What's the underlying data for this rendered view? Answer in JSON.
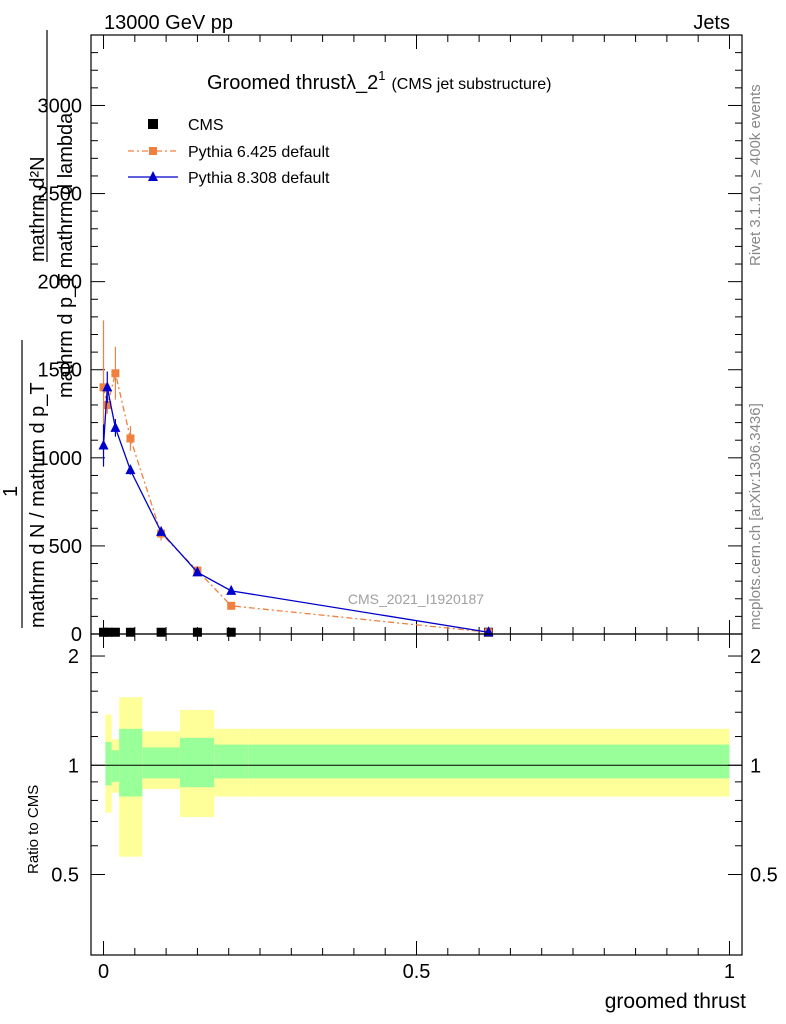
{
  "header": {
    "left": "13000 GeV pp",
    "right": "Jets"
  },
  "side_labels": {
    "rivet": "Rivet 3.1.10, ≥ 400k events",
    "mcplots": "mcplots.cern.ch [arXiv:1306.3436]"
  },
  "chart_data": {
    "type": "line",
    "title": "Groomed thrustλ_2",
    "title_sup": "1",
    "subtitle": "(CMS jet substructure)",
    "watermark": "CMS_2021_I1920187",
    "xlabel": "groomed thrust",
    "ylabel_top": {
      "numerator": "mathrm d²N",
      "denominator": "mathrm d p_T mathrm d lambda",
      "prefactor": "1",
      "prefactor_den": "mathrm d N / mathrm d p_T"
    },
    "xlim": [
      -0.02,
      1.02
    ],
    "ylim": [
      0,
      3400
    ],
    "x_ticks": [
      0,
      0.5,
      1
    ],
    "x_tick_labels": [
      "0",
      "0.5",
      "1"
    ],
    "y_ticks": [
      0,
      500,
      1000,
      1500,
      2000,
      2500,
      3000
    ],
    "y_tick_labels": [
      "0",
      "500",
      "1000",
      "1500",
      "2000",
      "2500",
      "3000"
    ],
    "legend_position": "top-left",
    "series": [
      {
        "name": "CMS",
        "color": "#000000",
        "marker": "square",
        "x": [
          0.0,
          0.008,
          0.019,
          0.043,
          0.092,
          0.15,
          0.204,
          0.615
        ],
        "y": [
          10,
          10,
          10,
          10,
          10,
          10,
          10,
          10
        ]
      },
      {
        "name": "Pythia 6.425 default",
        "color": "#f08040",
        "marker": "square",
        "x": [
          0.0,
          0.006,
          0.019,
          0.043,
          0.092,
          0.15,
          0.204,
          0.615
        ],
        "y": [
          1400,
          1300,
          1480,
          1110,
          570,
          360,
          160,
          10
        ],
        "err": [
          380,
          50,
          150,
          70,
          40,
          25,
          20,
          5
        ]
      },
      {
        "name": "Pythia 8.308 default",
        "color": "#0000cc",
        "marker": "triangle",
        "x": [
          0.0,
          0.006,
          0.019,
          0.043,
          0.092,
          0.15,
          0.204,
          0.615
        ],
        "y": [
          1070,
          1400,
          1170,
          930,
          580,
          350,
          245,
          10
        ],
        "err": [
          120,
          90,
          50,
          25,
          20,
          15,
          10,
          5
        ]
      }
    ],
    "ratio": {
      "ylabel": "Ratio to CMS",
      "ylim": [
        0.3,
        2.3
      ],
      "y_ticks": [
        0.5,
        1,
        2
      ],
      "y_tick_labels": [
        "0.5",
        "1",
        "2"
      ],
      "band_edges": [
        0.0,
        0.003,
        0.013,
        0.025,
        0.062,
        0.122,
        0.177,
        0.232,
        1.0
      ],
      "inner_band": [
        [
          1.0,
          1.0
        ],
        [
          0.88,
          1.16
        ],
        [
          0.9,
          1.1
        ],
        [
          0.82,
          1.26
        ],
        [
          0.92,
          1.12
        ],
        [
          0.87,
          1.19
        ],
        [
          0.92,
          1.14
        ],
        [
          0.92,
          1.14
        ]
      ],
      "outer_band": [
        [
          1.0,
          1.0
        ],
        [
          0.74,
          1.38
        ],
        [
          0.84,
          1.18
        ],
        [
          0.56,
          1.54
        ],
        [
          0.86,
          1.24
        ],
        [
          0.72,
          1.42
        ],
        [
          0.82,
          1.26
        ],
        [
          0.82,
          1.26
        ]
      ]
    }
  }
}
